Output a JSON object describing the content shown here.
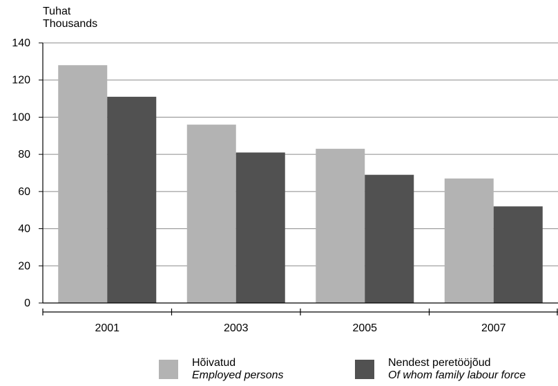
{
  "chart_data": {
    "type": "bar",
    "ylabel": "Tuhat",
    "ylabel_en": "Thousands",
    "categories": [
      "2001",
      "2003",
      "2005",
      "2007"
    ],
    "series": [
      {
        "name": "Hõivatud",
        "name_en": "Employed persons",
        "color": "#b3b3b3",
        "values": [
          128,
          96,
          83,
          67
        ]
      },
      {
        "name": "Nendest peretööjõud",
        "name_en": "Of whom family labour force",
        "color": "#515151",
        "values": [
          111,
          81,
          69,
          52
        ]
      }
    ],
    "ylim": [
      0,
      140
    ],
    "yticks": [
      0,
      20,
      40,
      60,
      80,
      100,
      120,
      140
    ],
    "grid": true,
    "legend_position": "bottom"
  }
}
